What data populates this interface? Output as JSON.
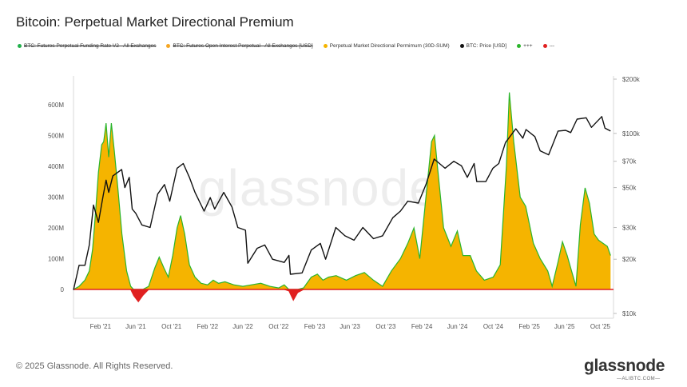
{
  "title": "Bitcoin: Perpetual Market Directional Premium",
  "legend": [
    {
      "label": "BTC: Futures Perpetual Funding Rate V2 - All Exchanges",
      "color": "#22b14c",
      "struck": true
    },
    {
      "label": "BTC: Futures Open Interest Perpetual - All Exchanges [USD]",
      "color": "#f5a623",
      "struck": true
    },
    {
      "label": "Perpetual Market Directional Permimum (30D-SUM)",
      "color": "#f5b400",
      "struck": false
    },
    {
      "label": "BTC: Price [USD]",
      "color": "#111111",
      "struck": false
    },
    {
      "label": "+++",
      "color": "#2bb52b",
      "struck": false
    },
    {
      "label": "---",
      "color": "#e02020",
      "struck": false
    }
  ],
  "watermark": "glassnode",
  "copyright": "© 2025 Glassnode. All Rights Reserved.",
  "brand": "glassnode",
  "brand_sub": "—ALIBTC.COM—",
  "chart_data": {
    "type": "area",
    "x_ticks": [
      "Feb '21",
      "Jun '21",
      "Oct '21",
      "Feb '22",
      "Jun '22",
      "Oct '22",
      "Feb '23",
      "Jun '23",
      "Oct '23",
      "Feb '24",
      "Jun '24",
      "Oct '24",
      "Feb '25",
      "Jun '25",
      "Oct '25"
    ],
    "y_left_ticks": [
      "0",
      "100M",
      "200M",
      "300M",
      "400M",
      "500M",
      "600M"
    ],
    "y_left_range": [
      -80,
      650
    ],
    "y_right_ticks": [
      "$10k",
      "$20k",
      "$30k",
      "$50k",
      "$70k",
      "$100k",
      "$200k"
    ],
    "y_right_log": true,
    "x_range": [
      "2020-11-01",
      "2025-11-15"
    ],
    "series": [
      {
        "name": "Perpetual Market Directional Permimum (30D-SUM)",
        "unit": "USD (M)",
        "positive_color": "#f5b400",
        "positive_line": "#2bb52b",
        "negative_color": "#e02020",
        "points": [
          [
            "2020-11-01",
            0
          ],
          [
            "2020-11-20",
            10
          ],
          [
            "2020-12-10",
            30
          ],
          [
            "2020-12-25",
            60
          ],
          [
            "2021-01-05",
            130
          ],
          [
            "2021-01-15",
            250
          ],
          [
            "2021-01-25",
            380
          ],
          [
            "2021-02-05",
            470
          ],
          [
            "2021-02-12",
            480
          ],
          [
            "2021-02-20",
            540
          ],
          [
            "2021-03-01",
            430
          ],
          [
            "2021-03-10",
            540
          ],
          [
            "2021-03-20",
            450
          ],
          [
            "2021-04-01",
            330
          ],
          [
            "2021-04-15",
            180
          ],
          [
            "2021-05-01",
            60
          ],
          [
            "2021-05-15",
            10
          ],
          [
            "2021-05-25",
            -20
          ],
          [
            "2021-06-10",
            -40
          ],
          [
            "2021-06-25",
            -20
          ],
          [
            "2021-07-15",
            10
          ],
          [
            "2021-08-05",
            70
          ],
          [
            "2021-08-20",
            105
          ],
          [
            "2021-09-05",
            70
          ],
          [
            "2021-09-20",
            40
          ],
          [
            "2021-10-05",
            110
          ],
          [
            "2021-10-20",
            200
          ],
          [
            "2021-11-01",
            240
          ],
          [
            "2021-11-15",
            180
          ],
          [
            "2021-12-01",
            80
          ],
          [
            "2021-12-20",
            40
          ],
          [
            "2022-01-10",
            20
          ],
          [
            "2022-02-01",
            15
          ],
          [
            "2022-02-20",
            30
          ],
          [
            "2022-03-10",
            20
          ],
          [
            "2022-04-01",
            25
          ],
          [
            "2022-05-01",
            15
          ],
          [
            "2022-06-01",
            10
          ],
          [
            "2022-07-01",
            15
          ],
          [
            "2022-08-01",
            20
          ],
          [
            "2022-09-01",
            10
          ],
          [
            "2022-10-01",
            5
          ],
          [
            "2022-10-20",
            15
          ],
          [
            "2022-11-05",
            -5
          ],
          [
            "2022-11-20",
            -35
          ],
          [
            "2022-12-05",
            -10
          ],
          [
            "2022-12-25",
            5
          ],
          [
            "2023-01-20",
            40
          ],
          [
            "2023-02-10",
            50
          ],
          [
            "2023-03-01",
            30
          ],
          [
            "2023-03-20",
            40
          ],
          [
            "2023-04-15",
            45
          ],
          [
            "2023-05-20",
            30
          ],
          [
            "2023-06-20",
            45
          ],
          [
            "2023-07-20",
            55
          ],
          [
            "2023-08-20",
            30
          ],
          [
            "2023-09-20",
            10
          ],
          [
            "2023-10-20",
            60
          ],
          [
            "2023-11-20",
            100
          ],
          [
            "2023-12-15",
            150
          ],
          [
            "2024-01-05",
            200
          ],
          [
            "2024-01-25",
            100
          ],
          [
            "2024-02-15",
            300
          ],
          [
            "2024-03-05",
            480
          ],
          [
            "2024-03-15",
            500
          ],
          [
            "2024-03-25",
            400
          ],
          [
            "2024-04-15",
            200
          ],
          [
            "2024-05-10",
            140
          ],
          [
            "2024-06-01",
            190
          ],
          [
            "2024-06-20",
            110
          ],
          [
            "2024-07-15",
            110
          ],
          [
            "2024-08-05",
            60
          ],
          [
            "2024-09-01",
            30
          ],
          [
            "2024-10-01",
            40
          ],
          [
            "2024-10-25",
            80
          ],
          [
            "2024-11-15",
            400
          ],
          [
            "2024-11-25",
            640
          ],
          [
            "2024-12-10",
            480
          ],
          [
            "2025-01-01",
            300
          ],
          [
            "2025-01-20",
            270
          ],
          [
            "2025-02-15",
            150
          ],
          [
            "2025-03-10",
            100
          ],
          [
            "2025-04-05",
            60
          ],
          [
            "2025-04-20",
            10
          ],
          [
            "2025-05-10",
            90
          ],
          [
            "2025-05-25",
            155
          ],
          [
            "2025-06-10",
            110
          ],
          [
            "2025-06-25",
            60
          ],
          [
            "2025-07-10",
            10
          ],
          [
            "2025-07-25",
            210
          ],
          [
            "2025-08-10",
            330
          ],
          [
            "2025-08-25",
            280
          ],
          [
            "2025-09-10",
            180
          ],
          [
            "2025-09-25",
            160
          ],
          [
            "2025-10-10",
            150
          ],
          [
            "2025-10-25",
            140
          ],
          [
            "2025-11-05",
            110
          ]
        ]
      },
      {
        "name": "BTC: Price [USD]",
        "unit": "USD",
        "color": "#111111",
        "points": [
          [
            "2020-11-01",
            13500
          ],
          [
            "2020-11-20",
            18500
          ],
          [
            "2020-12-10",
            18500
          ],
          [
            "2020-12-25",
            24000
          ],
          [
            "2021-01-08",
            40000
          ],
          [
            "2021-01-25",
            32000
          ],
          [
            "2021-02-10",
            45000
          ],
          [
            "2021-02-20",
            55000
          ],
          [
            "2021-03-01",
            47000
          ],
          [
            "2021-03-15",
            58000
          ],
          [
            "2021-04-14",
            63000
          ],
          [
            "2021-04-25",
            50000
          ],
          [
            "2021-05-10",
            57000
          ],
          [
            "2021-05-20",
            38000
          ],
          [
            "2021-06-01",
            36000
          ],
          [
            "2021-06-22",
            31000
          ],
          [
            "2021-07-20",
            30000
          ],
          [
            "2021-08-15",
            46000
          ],
          [
            "2021-09-07",
            52000
          ],
          [
            "2021-09-25",
            42000
          ],
          [
            "2021-10-20",
            64000
          ],
          [
            "2021-11-10",
            68000
          ],
          [
            "2021-12-01",
            57000
          ],
          [
            "2021-12-20",
            47000
          ],
          [
            "2022-01-20",
            37000
          ],
          [
            "2022-02-10",
            44000
          ],
          [
            "2022-02-25",
            38000
          ],
          [
            "2022-03-28",
            47000
          ],
          [
            "2022-04-25",
            39000
          ],
          [
            "2022-05-15",
            30000
          ],
          [
            "2022-06-10",
            29000
          ],
          [
            "2022-06-18",
            19000
          ],
          [
            "2022-07-20",
            23000
          ],
          [
            "2022-08-15",
            24000
          ],
          [
            "2022-09-10",
            20000
          ],
          [
            "2022-10-20",
            19200
          ],
          [
            "2022-11-05",
            21000
          ],
          [
            "2022-11-10",
            16500
          ],
          [
            "2022-12-20",
            16800
          ],
          [
            "2023-01-20",
            22500
          ],
          [
            "2023-02-20",
            24500
          ],
          [
            "2023-03-10",
            20000
          ],
          [
            "2023-04-14",
            30000
          ],
          [
            "2023-05-15",
            27000
          ],
          [
            "2023-06-15",
            25500
          ],
          [
            "2023-07-15",
            30000
          ],
          [
            "2023-08-20",
            26000
          ],
          [
            "2023-09-20",
            27000
          ],
          [
            "2023-10-25",
            34000
          ],
          [
            "2023-11-20",
            37000
          ],
          [
            "2023-12-15",
            42000
          ],
          [
            "2024-01-20",
            41000
          ],
          [
            "2024-02-15",
            52000
          ],
          [
            "2024-03-14",
            72000
          ],
          [
            "2024-04-20",
            64000
          ],
          [
            "2024-05-20",
            70000
          ],
          [
            "2024-06-15",
            66000
          ],
          [
            "2024-07-05",
            57000
          ],
          [
            "2024-07-28",
            68000
          ],
          [
            "2024-08-06",
            54000
          ],
          [
            "2024-09-06",
            54000
          ],
          [
            "2024-09-30",
            64000
          ],
          [
            "2024-10-20",
            68000
          ],
          [
            "2024-11-12",
            89000
          ],
          [
            "2024-12-17",
            106000
          ],
          [
            "2025-01-10",
            94000
          ],
          [
            "2025-01-21",
            105000
          ],
          [
            "2025-02-20",
            96000
          ],
          [
            "2025-03-10",
            80000
          ],
          [
            "2025-04-08",
            76000
          ],
          [
            "2025-05-10",
            103000
          ],
          [
            "2025-06-05",
            104000
          ],
          [
            "2025-06-22",
            101000
          ],
          [
            "2025-07-14",
            120000
          ],
          [
            "2025-08-14",
            122000
          ],
          [
            "2025-09-01",
            108000
          ],
          [
            "2025-10-06",
            124000
          ],
          [
            "2025-10-17",
            107000
          ],
          [
            "2025-11-05",
            103000
          ]
        ]
      }
    ],
    "legend_position": "top-left",
    "grid": false
  }
}
